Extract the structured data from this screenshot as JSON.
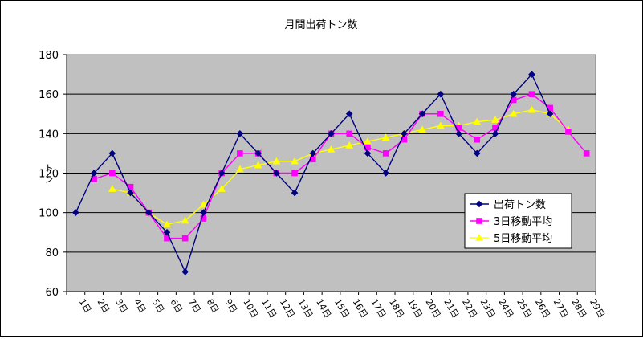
{
  "chart_data": {
    "type": "line",
    "title": "月間出荷トン数",
    "xlabel": "",
    "ylabel": "トン",
    "ylim": [
      60,
      180
    ],
    "yticks": [
      60,
      80,
      100,
      120,
      140,
      160,
      180
    ],
    "grid": true,
    "legend_position": "lower-right",
    "plot_background": "#c0c0c0",
    "categories": [
      "1日",
      "2日",
      "3日",
      "4日",
      "5日",
      "6日",
      "7日",
      "8日",
      "9日",
      "10日",
      "11日",
      "12日",
      "13日",
      "14日",
      "15日",
      "16日",
      "17日",
      "18日",
      "19日",
      "20日",
      "21日",
      "22日",
      "23日",
      "24日",
      "25日",
      "26日",
      "27日",
      "28日",
      "29日"
    ],
    "series": [
      {
        "name": "出荷トン数",
        "color": "#000080",
        "marker": "diamond",
        "values": [
          100,
          120,
          130,
          110,
          100,
          90,
          70,
          100,
          120,
          140,
          130,
          120,
          110,
          130,
          140,
          150,
          130,
          120,
          140,
          150,
          160,
          140,
          130,
          140,
          160,
          170,
          150,
          null,
          null
        ]
      },
      {
        "name": "3日移動平均",
        "color": "#ff00ff",
        "marker": "square",
        "values": [
          null,
          117,
          120,
          113,
          100,
          87,
          87,
          97,
          120,
          130,
          130,
          120,
          120,
          127,
          140,
          140,
          133,
          130,
          137,
          150,
          150,
          143,
          137,
          143,
          157,
          160,
          153,
          141,
          130
        ]
      },
      {
        "name": "5日移動平均",
        "color": "#ffff00",
        "marker": "triangle",
        "values": [
          null,
          null,
          112,
          110,
          100,
          94,
          96,
          104,
          112,
          122,
          124,
          126,
          126,
          130,
          132,
          134,
          136,
          138,
          140,
          142,
          144,
          144,
          146,
          147,
          150,
          152,
          150,
          142,
          null
        ]
      }
    ]
  }
}
